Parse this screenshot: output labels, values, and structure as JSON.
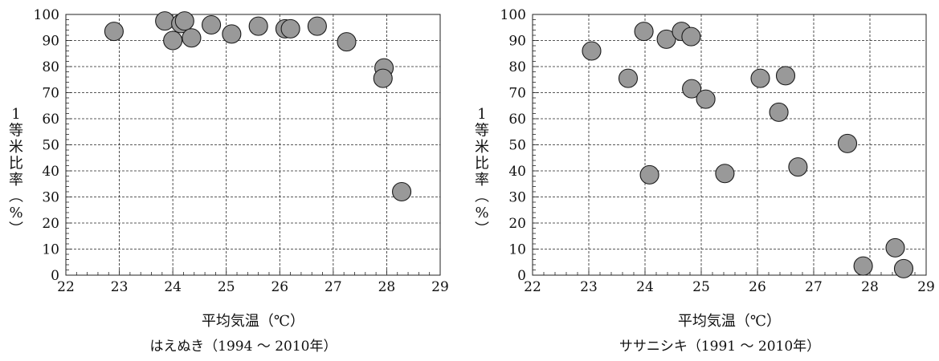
{
  "chart_data": [
    {
      "type": "scatter",
      "title": "はえぬき（1994 ～ 2010年）",
      "xlabel": "平均気温（℃）",
      "ylabel": "1等米比率（%）",
      "xlim": [
        22,
        29
      ],
      "ylim": [
        0,
        100
      ],
      "x_ticks": [
        "22",
        "23",
        "24",
        "25",
        "26",
        "27",
        "28",
        "29"
      ],
      "y_ticks": [
        "0",
        "10",
        "20",
        "30",
        "40",
        "50",
        "60",
        "70",
        "80",
        "90",
        "100"
      ],
      "grid": true,
      "marker_color": "#999999",
      "points": [
        {
          "x": 22.9,
          "y": 93.5
        },
        {
          "x": 23.85,
          "y": 97.5
        },
        {
          "x": 24.0,
          "y": 90.0
        },
        {
          "x": 24.15,
          "y": 96.5
        },
        {
          "x": 24.22,
          "y": 97.5
        },
        {
          "x": 24.35,
          "y": 91.0
        },
        {
          "x": 24.72,
          "y": 96.0
        },
        {
          "x": 25.1,
          "y": 92.5
        },
        {
          "x": 25.6,
          "y": 95.5
        },
        {
          "x": 26.1,
          "y": 94.5
        },
        {
          "x": 26.2,
          "y": 94.5
        },
        {
          "x": 26.7,
          "y": 95.5
        },
        {
          "x": 27.25,
          "y": 89.5
        },
        {
          "x": 27.95,
          "y": 79.5
        },
        {
          "x": 27.93,
          "y": 75.5
        },
        {
          "x": 28.28,
          "y": 32.0
        }
      ]
    },
    {
      "type": "scatter",
      "title": "ササニシキ（1991 ～ 2010年）",
      "xlabel": "平均気温（℃）",
      "ylabel": "1等米比率（%）",
      "xlim": [
        22,
        29
      ],
      "ylim": [
        0,
        100
      ],
      "x_ticks": [
        "22",
        "23",
        "24",
        "25",
        "26",
        "27",
        "28",
        "29"
      ],
      "y_ticks": [
        "0",
        "10",
        "20",
        "30",
        "40",
        "50",
        "60",
        "70",
        "80",
        "90",
        "100"
      ],
      "grid": true,
      "marker_color": "#999999",
      "points": [
        {
          "x": 23.05,
          "y": 86.0
        },
        {
          "x": 23.7,
          "y": 75.5
        },
        {
          "x": 23.98,
          "y": 93.5
        },
        {
          "x": 24.08,
          "y": 38.5
        },
        {
          "x": 24.38,
          "y": 90.5
        },
        {
          "x": 24.65,
          "y": 93.5
        },
        {
          "x": 24.82,
          "y": 91.5
        },
        {
          "x": 24.83,
          "y": 71.5
        },
        {
          "x": 25.08,
          "y": 67.5
        },
        {
          "x": 25.42,
          "y": 39.0
        },
        {
          "x": 26.05,
          "y": 75.5
        },
        {
          "x": 26.38,
          "y": 62.5
        },
        {
          "x": 26.5,
          "y": 76.5
        },
        {
          "x": 26.72,
          "y": 41.5
        },
        {
          "x": 27.6,
          "y": 50.5
        },
        {
          "x": 27.88,
          "y": 3.5
        },
        {
          "x": 28.45,
          "y": 10.5
        },
        {
          "x": 28.6,
          "y": 2.5
        }
      ]
    }
  ]
}
